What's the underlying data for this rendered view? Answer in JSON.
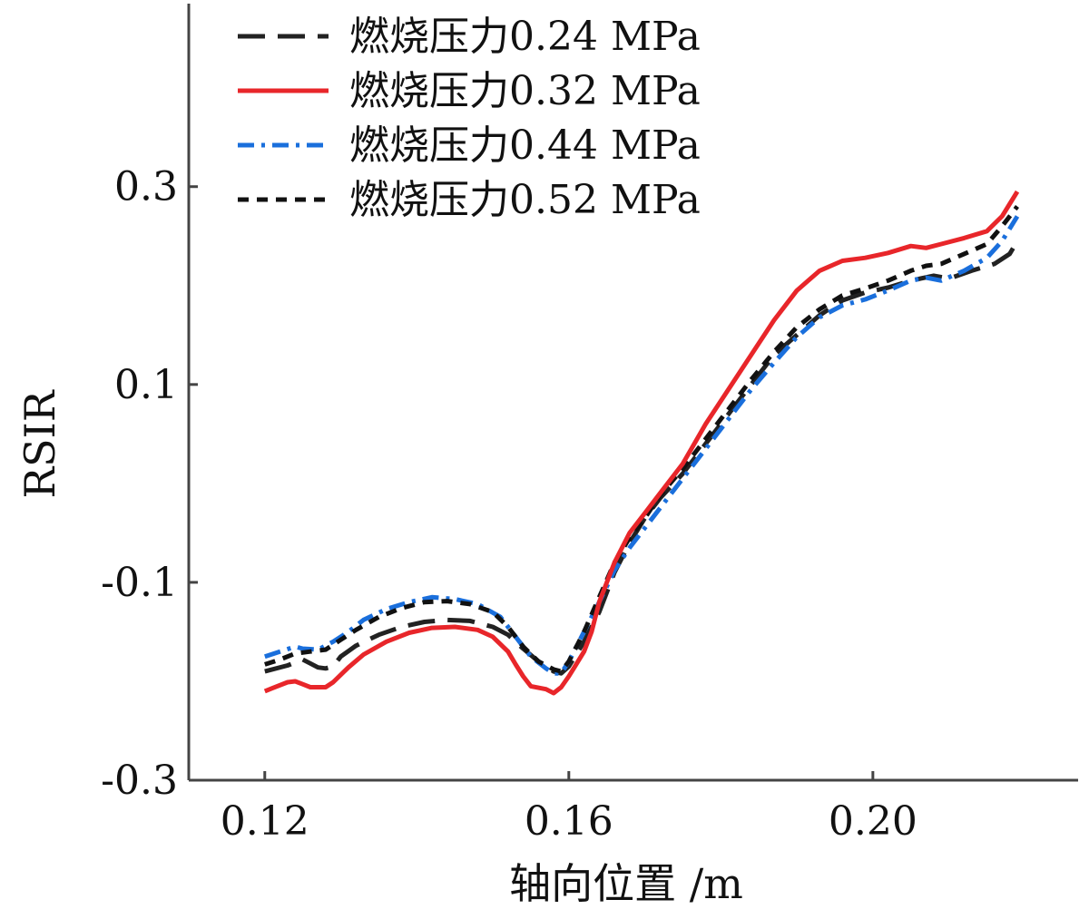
{
  "chart_data": {
    "type": "line",
    "xlabel": "轴向位置 /m",
    "ylabel": "RSIR",
    "xlim": [
      0.11,
      0.227
    ],
    "ylim": [
      -0.3,
      0.485
    ],
    "x_ticks": [
      {
        "value": 0.12,
        "label": "0.12"
      },
      {
        "value": 0.16,
        "label": "0.16"
      },
      {
        "value": 0.2,
        "label": "0.20"
      }
    ],
    "y_ticks": [
      {
        "value": 0.3,
        "label": "0.3"
      },
      {
        "value": 0.1,
        "label": "0.1"
      },
      {
        "value": -0.1,
        "label": "-0.1"
      },
      {
        "value": -0.3,
        "label": "-0.3"
      }
    ],
    "grid": false,
    "legend_position": "top-left",
    "series": [
      {
        "name": "燃烧压力0.24 MPa",
        "color": "#222222",
        "dash": "long-dash",
        "points": [
          [
            0.12,
            -0.19
          ],
          [
            0.123,
            -0.184
          ],
          [
            0.125,
            -0.178
          ],
          [
            0.126,
            -0.182
          ],
          [
            0.127,
            -0.186
          ],
          [
            0.128,
            -0.187
          ],
          [
            0.129,
            -0.185
          ],
          [
            0.13,
            -0.175
          ],
          [
            0.132,
            -0.164
          ],
          [
            0.135,
            -0.153
          ],
          [
            0.138,
            -0.145
          ],
          [
            0.141,
            -0.14
          ],
          [
            0.144,
            -0.138
          ],
          [
            0.147,
            -0.139
          ],
          [
            0.15,
            -0.145
          ],
          [
            0.152,
            -0.153
          ],
          [
            0.154,
            -0.167
          ],
          [
            0.156,
            -0.18
          ],
          [
            0.158,
            -0.19
          ],
          [
            0.159,
            -0.192
          ],
          [
            0.16,
            -0.185
          ],
          [
            0.162,
            -0.16
          ],
          [
            0.164,
            -0.13
          ],
          [
            0.166,
            -0.09
          ],
          [
            0.168,
            -0.06
          ],
          [
            0.17,
            -0.035
          ],
          [
            0.172,
            -0.015
          ],
          [
            0.175,
            0.01
          ],
          [
            0.178,
            0.04
          ],
          [
            0.181,
            0.07
          ],
          [
            0.184,
            0.1
          ],
          [
            0.187,
            0.13
          ],
          [
            0.19,
            0.15
          ],
          [
            0.193,
            0.17
          ],
          [
            0.196,
            0.185
          ],
          [
            0.199,
            0.193
          ],
          [
            0.202,
            0.198
          ],
          [
            0.205,
            0.205
          ],
          [
            0.208,
            0.21
          ],
          [
            0.21,
            0.207
          ],
          [
            0.213,
            0.215
          ],
          [
            0.216,
            0.222
          ],
          [
            0.218,
            0.232
          ],
          [
            0.219,
            0.245
          ]
        ]
      },
      {
        "name": "燃烧压力0.32 MPa",
        "color": "#e8262a",
        "dash": "solid",
        "points": [
          [
            0.12,
            -0.21
          ],
          [
            0.121,
            -0.207
          ],
          [
            0.123,
            -0.201
          ],
          [
            0.124,
            -0.2
          ],
          [
            0.125,
            -0.203
          ],
          [
            0.126,
            -0.206
          ],
          [
            0.128,
            -0.206
          ],
          [
            0.129,
            -0.201
          ],
          [
            0.131,
            -0.186
          ],
          [
            0.133,
            -0.173
          ],
          [
            0.136,
            -0.16
          ],
          [
            0.139,
            -0.151
          ],
          [
            0.142,
            -0.146
          ],
          [
            0.145,
            -0.145
          ],
          [
            0.148,
            -0.148
          ],
          [
            0.15,
            -0.155
          ],
          [
            0.152,
            -0.17
          ],
          [
            0.153,
            -0.183
          ],
          [
            0.154,
            -0.195
          ],
          [
            0.155,
            -0.205
          ],
          [
            0.157,
            -0.208
          ],
          [
            0.158,
            -0.212
          ],
          [
            0.159,
            -0.206
          ],
          [
            0.16,
            -0.195
          ],
          [
            0.162,
            -0.17
          ],
          [
            0.163,
            -0.15
          ],
          [
            0.164,
            -0.12
          ],
          [
            0.165,
            -0.1
          ],
          [
            0.166,
            -0.08
          ],
          [
            0.168,
            -0.05
          ],
          [
            0.17,
            -0.03
          ],
          [
            0.172,
            -0.01
          ],
          [
            0.175,
            0.02
          ],
          [
            0.178,
            0.06
          ],
          [
            0.181,
            0.095
          ],
          [
            0.184,
            0.13
          ],
          [
            0.187,
            0.165
          ],
          [
            0.19,
            0.195
          ],
          [
            0.193,
            0.215
          ],
          [
            0.196,
            0.225
          ],
          [
            0.199,
            0.228
          ],
          [
            0.202,
            0.233
          ],
          [
            0.205,
            0.24
          ],
          [
            0.207,
            0.238
          ],
          [
            0.209,
            0.242
          ],
          [
            0.212,
            0.248
          ],
          [
            0.215,
            0.255
          ],
          [
            0.217,
            0.27
          ],
          [
            0.219,
            0.295
          ]
        ]
      },
      {
        "name": "燃烧压力0.44 MPa",
        "color": "#1a6fdc",
        "dash": "dash-dot",
        "points": [
          [
            0.12,
            -0.175
          ],
          [
            0.122,
            -0.17
          ],
          [
            0.124,
            -0.165
          ],
          [
            0.125,
            -0.167
          ],
          [
            0.127,
            -0.168
          ],
          [
            0.129,
            -0.16
          ],
          [
            0.131,
            -0.15
          ],
          [
            0.133,
            -0.138
          ],
          [
            0.136,
            -0.127
          ],
          [
            0.139,
            -0.12
          ],
          [
            0.142,
            -0.115
          ],
          [
            0.145,
            -0.117
          ],
          [
            0.148,
            -0.122
          ],
          [
            0.151,
            -0.135
          ],
          [
            0.153,
            -0.155
          ],
          [
            0.155,
            -0.175
          ],
          [
            0.157,
            -0.187
          ],
          [
            0.158,
            -0.192
          ],
          [
            0.159,
            -0.192
          ],
          [
            0.16,
            -0.18
          ],
          [
            0.162,
            -0.15
          ],
          [
            0.164,
            -0.12
          ],
          [
            0.166,
            -0.088
          ],
          [
            0.168,
            -0.065
          ],
          [
            0.17,
            -0.045
          ],
          [
            0.172,
            -0.025
          ],
          [
            0.175,
            0.005
          ],
          [
            0.178,
            0.035
          ],
          [
            0.181,
            0.065
          ],
          [
            0.184,
            0.095
          ],
          [
            0.187,
            0.122
          ],
          [
            0.19,
            0.148
          ],
          [
            0.193,
            0.168
          ],
          [
            0.196,
            0.18
          ],
          [
            0.199,
            0.186
          ],
          [
            0.202,
            0.195
          ],
          [
            0.205,
            0.205
          ],
          [
            0.207,
            0.208
          ],
          [
            0.209,
            0.205
          ],
          [
            0.212,
            0.215
          ],
          [
            0.215,
            0.228
          ],
          [
            0.217,
            0.245
          ],
          [
            0.219,
            0.27
          ]
        ]
      },
      {
        "name": "燃烧压力0.52 MPa",
        "color": "#111111",
        "dash": "short-dash",
        "points": [
          [
            0.12,
            -0.183
          ],
          [
            0.122,
            -0.178
          ],
          [
            0.124,
            -0.172
          ],
          [
            0.126,
            -0.17
          ],
          [
            0.128,
            -0.168
          ],
          [
            0.13,
            -0.158
          ],
          [
            0.132,
            -0.148
          ],
          [
            0.135,
            -0.135
          ],
          [
            0.138,
            -0.126
          ],
          [
            0.141,
            -0.12
          ],
          [
            0.144,
            -0.119
          ],
          [
            0.147,
            -0.122
          ],
          [
            0.15,
            -0.13
          ],
          [
            0.152,
            -0.145
          ],
          [
            0.154,
            -0.165
          ],
          [
            0.156,
            -0.18
          ],
          [
            0.158,
            -0.188
          ],
          [
            0.159,
            -0.19
          ],
          [
            0.16,
            -0.18
          ],
          [
            0.162,
            -0.15
          ],
          [
            0.164,
            -0.115
          ],
          [
            0.166,
            -0.08
          ],
          [
            0.168,
            -0.055
          ],
          [
            0.17,
            -0.035
          ],
          [
            0.172,
            -0.012
          ],
          [
            0.175,
            0.015
          ],
          [
            0.178,
            0.045
          ],
          [
            0.181,
            0.075
          ],
          [
            0.184,
            0.105
          ],
          [
            0.187,
            0.133
          ],
          [
            0.19,
            0.158
          ],
          [
            0.193,
            0.176
          ],
          [
            0.196,
            0.19
          ],
          [
            0.199,
            0.197
          ],
          [
            0.202,
            0.205
          ],
          [
            0.205,
            0.215
          ],
          [
            0.207,
            0.22
          ],
          [
            0.209,
            0.222
          ],
          [
            0.212,
            0.232
          ],
          [
            0.215,
            0.242
          ],
          [
            0.217,
            0.26
          ],
          [
            0.219,
            0.28
          ]
        ]
      }
    ]
  }
}
